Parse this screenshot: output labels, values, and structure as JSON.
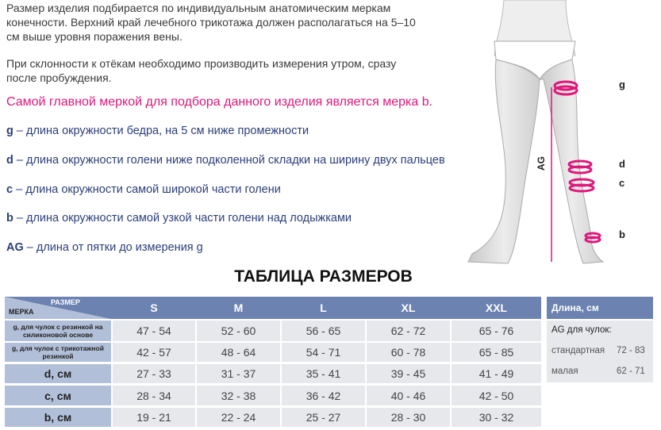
{
  "intro": {
    "p1": [
      "Размер изделия подбирается по индивидуальным анатомическим меркам",
      "конечности. Верхний край лечебного трикотажа должен располагаться на 5–10",
      "см выше уровня поражения вены."
    ],
    "p2": [
      "При склонности к отёкам необходимо производить измерения утром, сразу",
      "после пробуждения."
    ],
    "highlight": "Самой главной меркой для подбора данного изделия является мерка b.",
    "highlight_color": "#e0177a"
  },
  "definitions": [
    {
      "key": "g",
      "text": " – длина окружности бедра, на 5 см ниже промежности"
    },
    {
      "key": "d",
      "text": " – длина окружности голени ниже подколенной складки на ширину двух пальцев"
    },
    {
      "key": "c",
      "text": " – длина окружности самой широкой части голени"
    },
    {
      "key": "b",
      "text": " – длина окружности самой узкой части голени над лодыжками"
    },
    {
      "key": "AG",
      "text": " – длина от пятки до измерения g"
    }
  ],
  "figure": {
    "labels": {
      "g": "g",
      "d": "d",
      "c": "c",
      "b": "b",
      "ag": "AG"
    }
  },
  "table": {
    "title": "ТАБЛИЦА РАЗМЕРОВ",
    "corner_top": "РАЗМЕР",
    "corner_bottom": "МЕРКА",
    "sizes": [
      "S",
      "M",
      "L",
      "XL",
      "XXL"
    ],
    "rows": [
      {
        "label": "g, для чулок с  резинкой на силиконовой основе",
        "values": [
          "47 - 54",
          "52 - 60",
          "56 - 65",
          "62 - 72",
          "65 - 76"
        ]
      },
      {
        "label": "g, для чулок с трикотажной резинкой",
        "values": [
          "42 - 57",
          "48 - 64",
          "54 - 71",
          "60 - 78",
          "65 - 85"
        ]
      },
      {
        "label": "d, см",
        "values": [
          "27 - 33",
          "31 - 37",
          "35 - 41",
          "39 - 45",
          "41 - 49"
        ]
      },
      {
        "label": "c, см",
        "values": [
          "28 - 34",
          "32 - 38",
          "36 - 42",
          "40 - 46",
          "42 - 50"
        ]
      },
      {
        "label": "b, см",
        "values": [
          "19 - 21",
          "22 - 24",
          "25 - 27",
          "28 - 30",
          "30 - 32"
        ]
      }
    ]
  },
  "length": {
    "header": "Длина, см",
    "subtitle": "AG для чулок:",
    "rows": [
      {
        "label": "стандартная",
        "value": "72 - 83"
      },
      {
        "label": "малая",
        "value": "62 - 71"
      }
    ]
  }
}
